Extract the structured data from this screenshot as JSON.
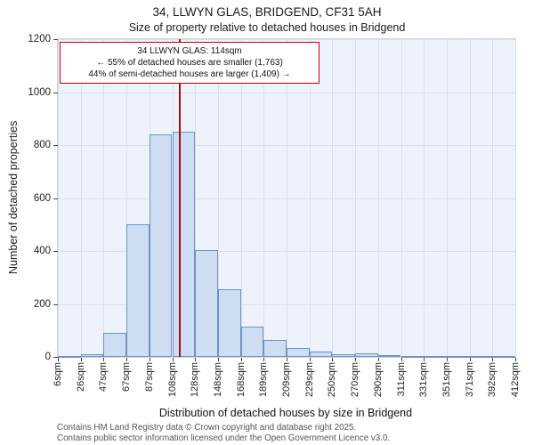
{
  "title": "34, LLWYN GLAS, BRIDGEND, CF31 5AH",
  "subtitle": "Size of property relative to detached houses in Bridgend",
  "annotation": {
    "line1": "34 LLWYN GLAS: 114sqm",
    "line2": "← 55% of detached houses are smaller (1,763)",
    "line3": "44% of semi-detached houses are larger (1,409) →"
  },
  "footer": {
    "line1": "Contains HM Land Registry data © Crown copyright and database right 2025.",
    "line2": "Contains public sector information licensed under the Open Government Licence v3.0."
  },
  "chart_data": {
    "type": "bar",
    "title": "34, LLWYN GLAS, BRIDGEND, CF31 5AH — Size of property relative to detached houses in Bridgend",
    "xlabel": "Distribution of detached houses by size in Bridgend",
    "ylabel": "Number of detached properties",
    "ylim": [
      0,
      1200
    ],
    "yticks": [
      0,
      200,
      400,
      600,
      800,
      1000,
      1200
    ],
    "grid": true,
    "legend": false,
    "categories": [
      "6sqm",
      "26sqm",
      "47sqm",
      "67sqm",
      "87sqm",
      "108sqm",
      "128sqm",
      "148sqm",
      "168sqm",
      "189sqm",
      "209sqm",
      "229sqm",
      "250sqm",
      "270sqm",
      "290sqm",
      "311sqm",
      "331sqm",
      "351sqm",
      "371sqm",
      "392sqm",
      "412sqm"
    ],
    "tick_values": [
      6,
      26,
      47,
      67,
      87,
      108,
      128,
      148,
      168,
      189,
      209,
      229,
      250,
      270,
      290,
      311,
      331,
      351,
      371,
      392,
      412
    ],
    "values": [
      3,
      10,
      90,
      500,
      840,
      850,
      405,
      255,
      115,
      65,
      35,
      20,
      10,
      12,
      6,
      5,
      4,
      3,
      2,
      4
    ],
    "marker_sqm": 114,
    "colors": {
      "bar_fill": "#cfddf2",
      "bar_border": "#6d93c5",
      "marker_line": "#a01010",
      "annotation_border": "#cc0000",
      "grid": "#d9dfeb",
      "plot_background": "#eef3fb"
    }
  }
}
